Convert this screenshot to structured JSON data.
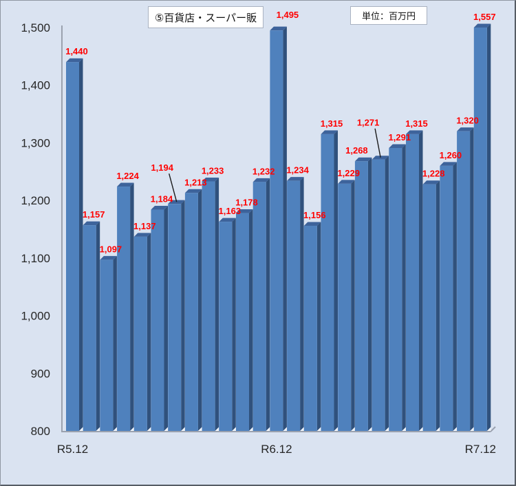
{
  "chart_data": {
    "type": "bar",
    "title": "⑤百貨店・スーパー販",
    "unit_label": "単位：百万円",
    "values": [
      1440,
      1157,
      1097,
      1224,
      1137,
      1184,
      1194,
      1213,
      1233,
      1163,
      1178,
      1232,
      1495,
      1234,
      1156,
      1315,
      1229,
      1268,
      1271,
      1291,
      1315,
      1228,
      1260,
      1320,
      1557
    ],
    "x_ticks": [
      {
        "index": 0,
        "label": "R5.12"
      },
      {
        "index": 12,
        "label": "R6.12"
      },
      {
        "index": 24,
        "label": "R7.12"
      }
    ],
    "y_ticks": [
      "800",
      "900",
      "1,000",
      "1,100",
      "1,200",
      "1,300",
      "1,400",
      "1,500"
    ],
    "ylim": [
      800,
      1500
    ],
    "ytick_step": 100,
    "grid": false,
    "legend": "none",
    "moved_labels": [
      {
        "index": 6,
        "dx": -24,
        "dy": -37,
        "leader": true
      },
      {
        "index": 12,
        "dx": 10,
        "dy": -7,
        "leader": false
      },
      {
        "index": 17,
        "dx": -13,
        "dy": 0,
        "leader": false
      },
      {
        "index": 18,
        "dx": -21,
        "dy": -38,
        "leader": true
      }
    ],
    "colors": {
      "bar_front": "#4f81bd",
      "bar_side": "#30517c",
      "bar_top": "#3d639b",
      "floor_gap": "#f0f4fa",
      "data_label": "#ff0000",
      "leader_line": "#1a1a1a",
      "background": "#dae3f1",
      "axis_line": "#9aa1ae",
      "axis_text": "#262626"
    }
  }
}
